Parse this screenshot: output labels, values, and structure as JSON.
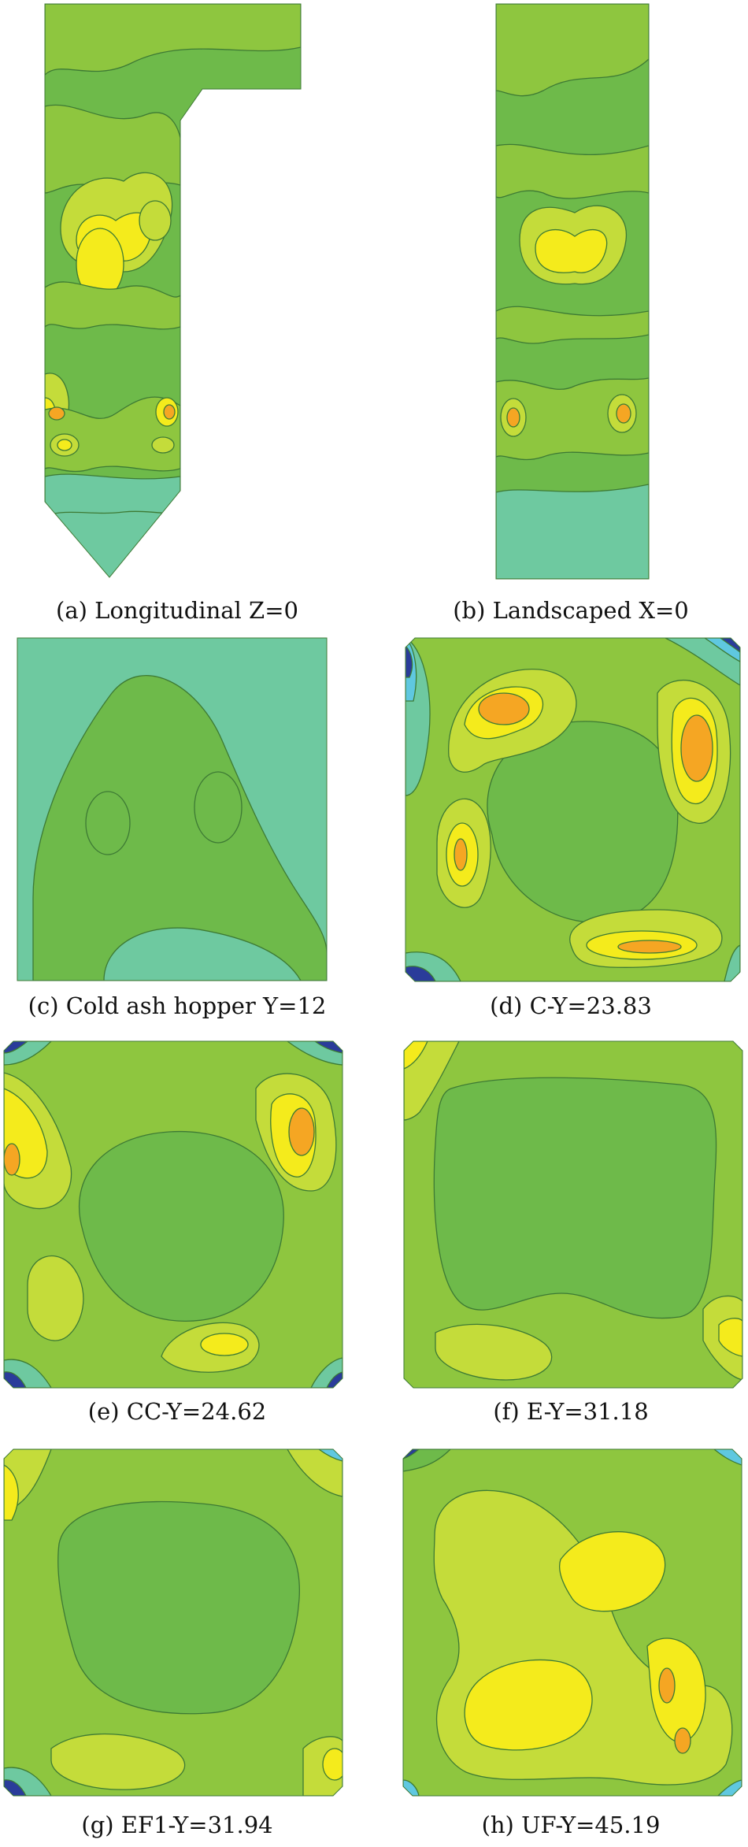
{
  "colors": {
    "base": "#6eba4a",
    "light": "#8ec63f",
    "lime": "#c4dc3a",
    "yellow": "#f4eb1c",
    "orange": "#f5a623",
    "teal": "#6ec9a0",
    "cyan": "#5fc8e0",
    "blue": "#2a3c9a",
    "contour": "#3d7a34"
  },
  "panels": [
    {
      "id": "a",
      "caption": "(a) Longitudinal Z=0"
    },
    {
      "id": "b",
      "caption": "(b) Landscaped X=0"
    },
    {
      "id": "c",
      "caption": "(c) Cold ash hopper Y=12"
    },
    {
      "id": "d",
      "caption": "(d) C-Y=23.83"
    },
    {
      "id": "e",
      "caption": "(e) CC-Y=24.62"
    },
    {
      "id": "f",
      "caption": "(f) E-Y=31.18"
    },
    {
      "id": "g",
      "caption": "(g) EF1-Y=31.94"
    },
    {
      "id": "h",
      "caption": "(h) UF-Y=45.19"
    }
  ]
}
